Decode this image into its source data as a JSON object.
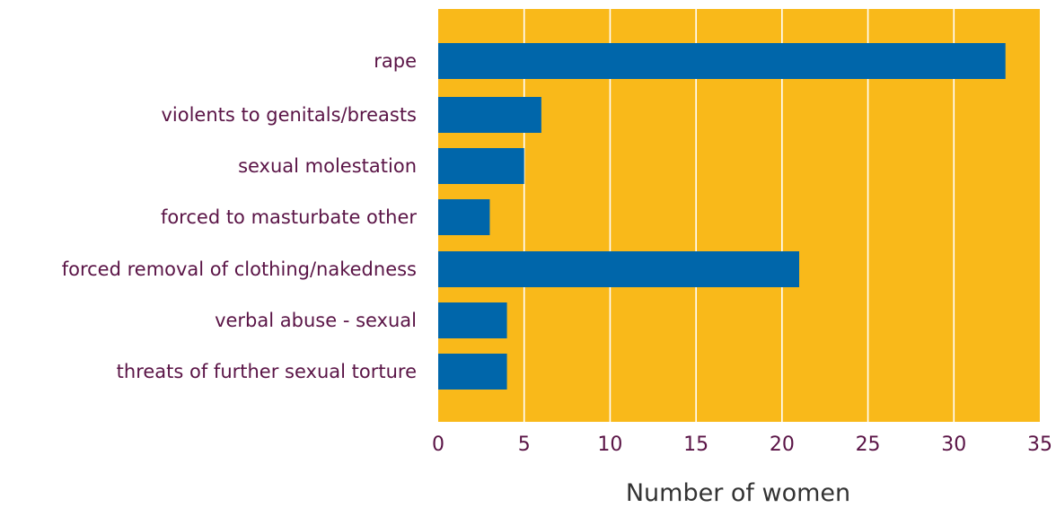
{
  "chart_data": {
    "type": "bar",
    "orientation": "horizontal",
    "title": "",
    "xlabel": "Number of women",
    "ylabel": "",
    "categories": [
      "rape",
      "violents to genitals/breasts",
      "sexual molestation",
      "forced to masturbate other",
      "forced removal of clothing/nakedness",
      "verbal abuse - sexual",
      "threats of further sexual torture"
    ],
    "values": [
      33,
      6,
      5,
      3,
      21,
      4,
      4
    ],
    "xlim": [
      0,
      35
    ],
    "xticks": [
      "0",
      "5",
      "10",
      "15",
      "20",
      "25",
      "30",
      "35"
    ],
    "grid": "vertical",
    "legend": "none",
    "colors": {
      "plot_background": "#F9B91A",
      "bar": "#0066AA",
      "gridline": "#FFFFFF",
      "category_text": "#5A1446",
      "tick_text": "#5A1446",
      "axis_title_text": "#333333"
    }
  }
}
